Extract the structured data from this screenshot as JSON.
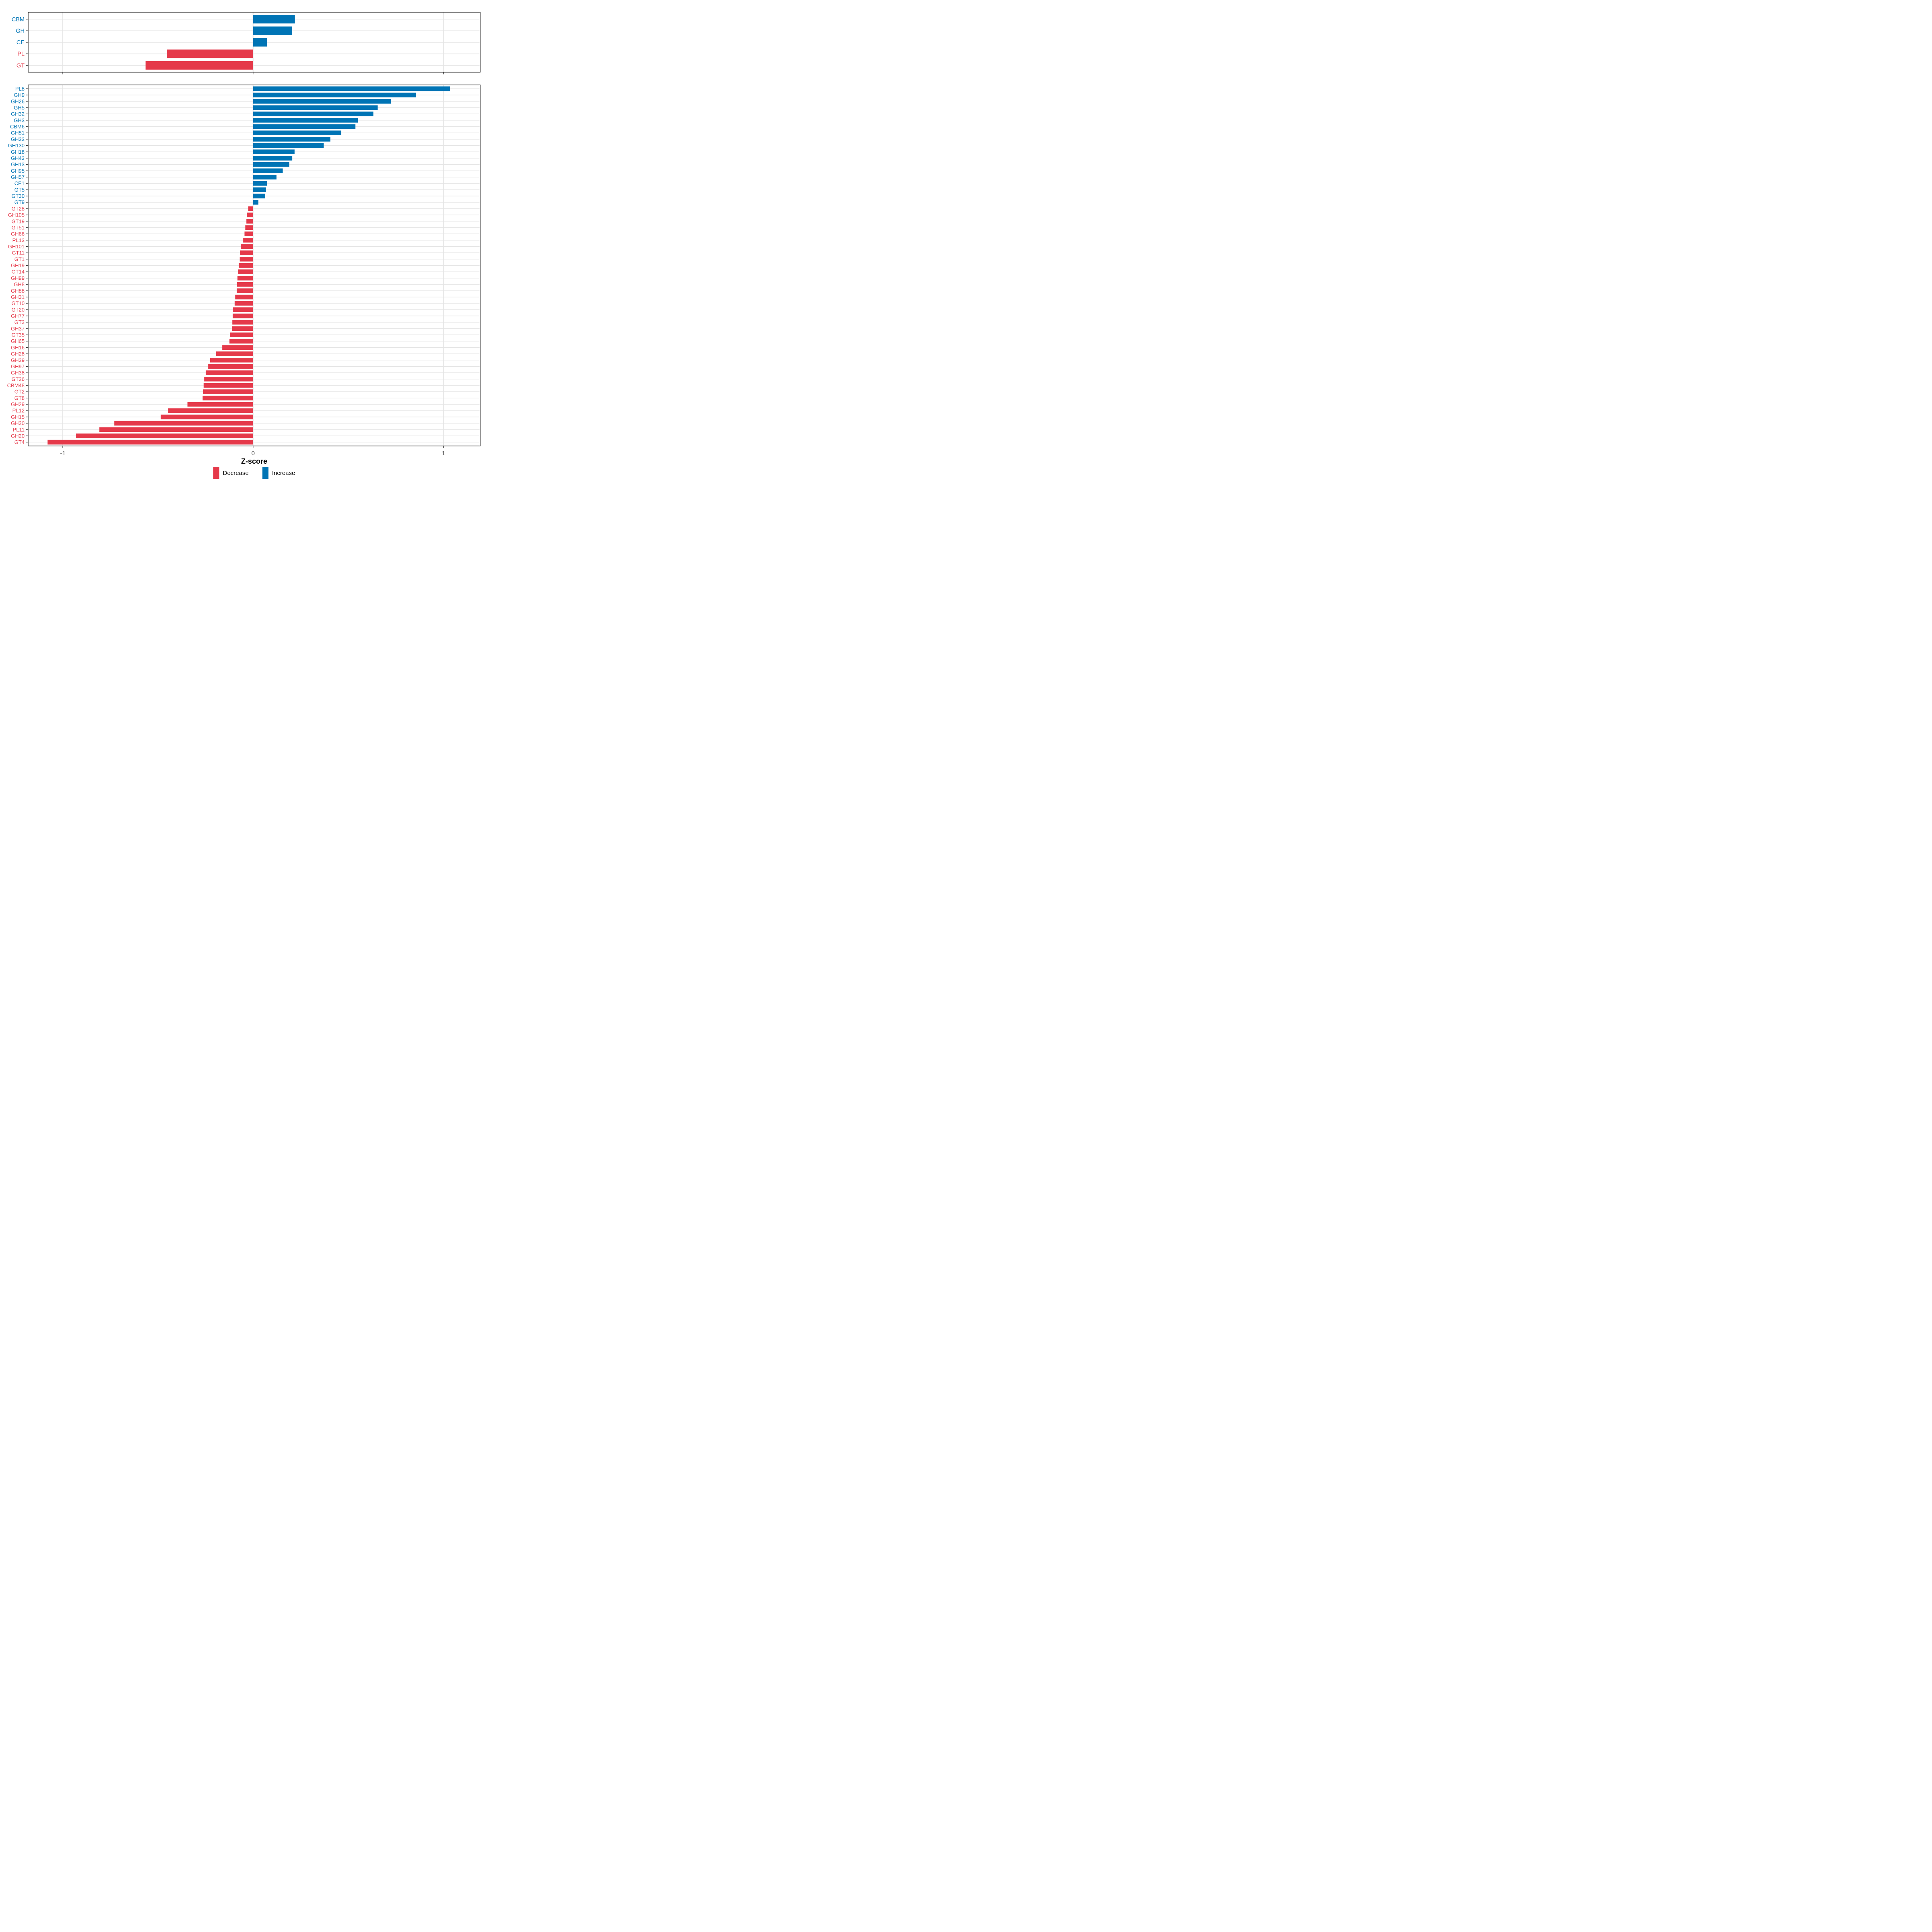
{
  "chart_data": {
    "type": "bar",
    "orientation": "horizontal",
    "title": "",
    "xlabel": "Z-score",
    "ylabel": "",
    "x_ticks": [
      -1,
      0,
      1
    ],
    "xlim": [
      -1.18,
      1.19
    ],
    "grid": "horizontal rows + vertical majors at -1, 0, 1",
    "legend_position": "bottom-center",
    "colors": {
      "increase": "#0074B5",
      "decrease": "#E5394A",
      "grid": "#E4E4E4",
      "axis_text": "#4D4D4D",
      "axis_title": "#000000",
      "border": "#1A1A1A",
      "tick": "#333333",
      "background": "#FFFFFF"
    },
    "legend": [
      {
        "label": "Decrease",
        "color": "#E5394A"
      },
      {
        "label": "Increase",
        "color": "#0074B5"
      }
    ],
    "panels": [
      {
        "name": "class-summary",
        "categories": [
          "CBM",
          "GH",
          "CE",
          "PL",
          "GT"
        ],
        "values": [
          0.22,
          0.205,
          0.073,
          -0.452,
          -0.565
        ]
      },
      {
        "name": "family-detail",
        "categories": [
          "PL8",
          "GH9",
          "GH26",
          "GH5",
          "GH32",
          "GH3",
          "CBM6",
          "GH51",
          "GH33",
          "GH130",
          "GH18",
          "GH43",
          "GH13",
          "GH95",
          "GH57",
          "CE1",
          "GT5",
          "GT30",
          "GT9",
          "GT28",
          "GH105",
          "GT19",
          "GT51",
          "GH66",
          "PL13",
          "GH101",
          "GT11",
          "GT1",
          "GH19",
          "GT14",
          "GH99",
          "GH8",
          "GH88",
          "GH31",
          "GT10",
          "GT20",
          "GH77",
          "GT3",
          "GH37",
          "GT35",
          "GH65",
          "GH16",
          "GH28",
          "GH39",
          "GH97",
          "GH38",
          "GT26",
          "CBM48",
          "GT2",
          "GT8",
          "GH29",
          "PL12",
          "GH15",
          "GH30",
          "PL11",
          "GH20",
          "GT4"
        ],
        "values": [
          1.035,
          0.855,
          0.725,
          0.655,
          0.632,
          0.551,
          0.538,
          0.463,
          0.406,
          0.371,
          0.218,
          0.206,
          0.19,
          0.156,
          0.123,
          0.073,
          0.068,
          0.064,
          0.028,
          -0.025,
          -0.033,
          -0.035,
          -0.041,
          -0.045,
          -0.052,
          -0.065,
          -0.068,
          -0.07,
          -0.075,
          -0.08,
          -0.082,
          -0.084,
          -0.086,
          -0.094,
          -0.097,
          -0.105,
          -0.107,
          -0.109,
          -0.111,
          -0.122,
          -0.124,
          -0.162,
          -0.195,
          -0.226,
          -0.236,
          -0.249,
          -0.257,
          -0.26,
          -0.262,
          -0.265,
          -0.345,
          -0.448,
          -0.485,
          -0.729,
          -0.808,
          -0.93,
          -1.08
        ]
      }
    ]
  }
}
